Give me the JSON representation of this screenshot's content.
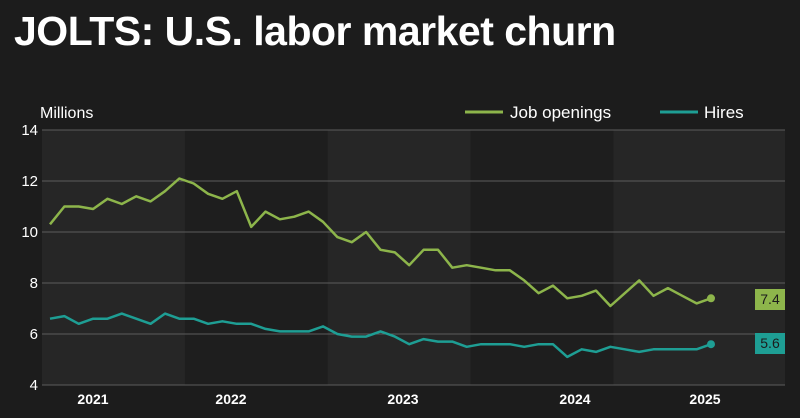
{
  "title": "JOLTS: U.S. labor market churn",
  "colors": {
    "background": "#1c1c1c",
    "plot_band_light": "#262626",
    "plot_band_dark": "#1e1e1e",
    "grid": "#5c5c5c",
    "job_openings": "#8db54b",
    "hires": "#1e9e94"
  },
  "chart_data": {
    "type": "line",
    "title": "JOLTS: U.S. labor market churn",
    "ylabel": "Millions",
    "xlabel": "",
    "ylim": [
      4,
      14
    ],
    "yticks": [
      4,
      6,
      8,
      10,
      12,
      14
    ],
    "xlim": [
      2021.0,
      2025.2
    ],
    "x_tick_labels": [
      {
        "label": "2021",
        "x": 2021.42
      },
      {
        "label": "2022",
        "x": 2022.42
      },
      {
        "label": "2023",
        "x": 2023.67
      },
      {
        "label": "2024",
        "x": 2024.92
      },
      {
        "label": "2025",
        "x": 2025.92
      }
    ],
    "shaded_years": [
      2022,
      2024
    ],
    "grid": true,
    "legend": "top-right",
    "series": [
      {
        "name": "Job openings",
        "end_label": "7.4",
        "values": [
          10.3,
          11.0,
          11.0,
          10.9,
          11.3,
          11.1,
          11.4,
          11.2,
          11.6,
          12.1,
          11.9,
          11.5,
          11.3,
          11.6,
          10.2,
          10.8,
          10.5,
          10.6,
          10.8,
          10.4,
          9.8,
          9.6,
          10.0,
          9.3,
          9.2,
          8.7,
          9.3,
          9.3,
          8.6,
          8.7,
          8.6,
          8.5,
          8.5,
          8.1,
          7.6,
          7.9,
          7.4,
          7.5,
          7.7,
          7.1,
          7.6,
          8.1,
          7.5,
          7.8,
          7.5,
          7.2,
          7.4
        ]
      },
      {
        "name": "Hires",
        "end_label": "5.6",
        "values": [
          6.6,
          6.7,
          6.4,
          6.6,
          6.6,
          6.8,
          6.6,
          6.4,
          6.8,
          6.6,
          6.6,
          6.4,
          6.5,
          6.4,
          6.4,
          6.2,
          6.1,
          6.1,
          6.1,
          6.3,
          6.0,
          5.9,
          5.9,
          6.1,
          5.9,
          5.6,
          5.8,
          5.7,
          5.7,
          5.5,
          5.6,
          5.6,
          5.6,
          5.5,
          5.6,
          5.6,
          5.1,
          5.4,
          5.3,
          5.5,
          5.4,
          5.3,
          5.4,
          5.4,
          5.4,
          5.4,
          5.6
        ]
      }
    ]
  }
}
